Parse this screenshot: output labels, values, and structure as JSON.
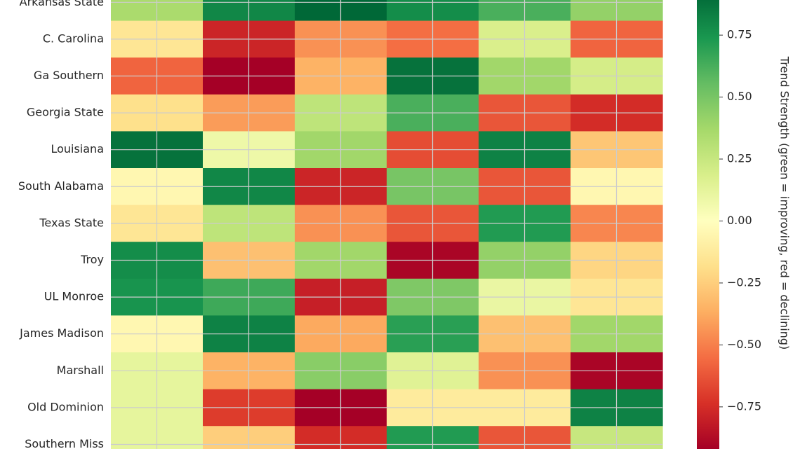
{
  "chart_data": {
    "type": "heatmap",
    "rows": [
      "Arkansas State",
      "C. Carolina",
      "Ga Southern",
      "Georgia State",
      "Louisiana",
      "South Alabama",
      "Texas State",
      "Troy",
      "UL Monroe",
      "James Madison",
      "Marshall",
      "Old Dominion",
      "Southern Miss"
    ],
    "columns": [
      "",
      "",
      "",
      "",
      "",
      ""
    ],
    "values": [
      [
        0.35,
        0.8,
        0.92,
        0.78,
        0.62,
        0.42
      ],
      [
        -0.15,
        -0.78,
        -0.45,
        -0.55,
        0.18,
        -0.58
      ],
      [
        -0.58,
        -0.92,
        -0.35,
        0.88,
        0.38,
        0.2
      ],
      [
        -0.18,
        -0.42,
        0.28,
        0.62,
        -0.62,
        -0.75
      ],
      [
        0.88,
        0.08,
        0.38,
        -0.65,
        0.82,
        -0.28
      ],
      [
        -0.05,
        0.8,
        -0.78,
        0.5,
        -0.62,
        -0.05
      ],
      [
        -0.15,
        0.28,
        -0.45,
        -0.62,
        0.72,
        -0.48
      ],
      [
        0.78,
        -0.3,
        0.38,
        -0.9,
        0.42,
        -0.22
      ],
      [
        0.75,
        0.65,
        -0.8,
        0.48,
        0.1,
        -0.15
      ],
      [
        -0.05,
        0.82,
        -0.38,
        0.7,
        -0.3,
        0.38
      ],
      [
        0.12,
        -0.35,
        0.45,
        0.15,
        -0.45,
        -0.9
      ],
      [
        0.12,
        -0.7,
        -0.92,
        -0.12,
        -0.12,
        0.82
      ],
      [
        0.12,
        -0.25,
        -0.75,
        0.72,
        -0.62,
        0.25
      ]
    ],
    "colorbar": {
      "label": "Trend Strength (green = improving, red = declining)",
      "range": [
        -0.92,
        0.92
      ],
      "ticks": [
        -0.75,
        -0.5,
        -0.25,
        0.0,
        0.25,
        0.5,
        0.75
      ],
      "tick_labels": [
        "−0.75",
        "−0.50",
        "−0.25",
        "0.00",
        "0.25",
        "0.50",
        "0.75"
      ],
      "colormap": "RdYlGn"
    },
    "grid": true,
    "title": "",
    "xlabel": "",
    "ylabel": ""
  },
  "colors": {
    "stops": [
      "#a50026",
      "#d73027",
      "#f46d43",
      "#fdae61",
      "#fee08b",
      "#ffffbf",
      "#d9ef8b",
      "#a6d96a",
      "#66bd63",
      "#1a9850",
      "#006837"
    ],
    "grid": "#cccccc",
    "text": "#262626"
  }
}
